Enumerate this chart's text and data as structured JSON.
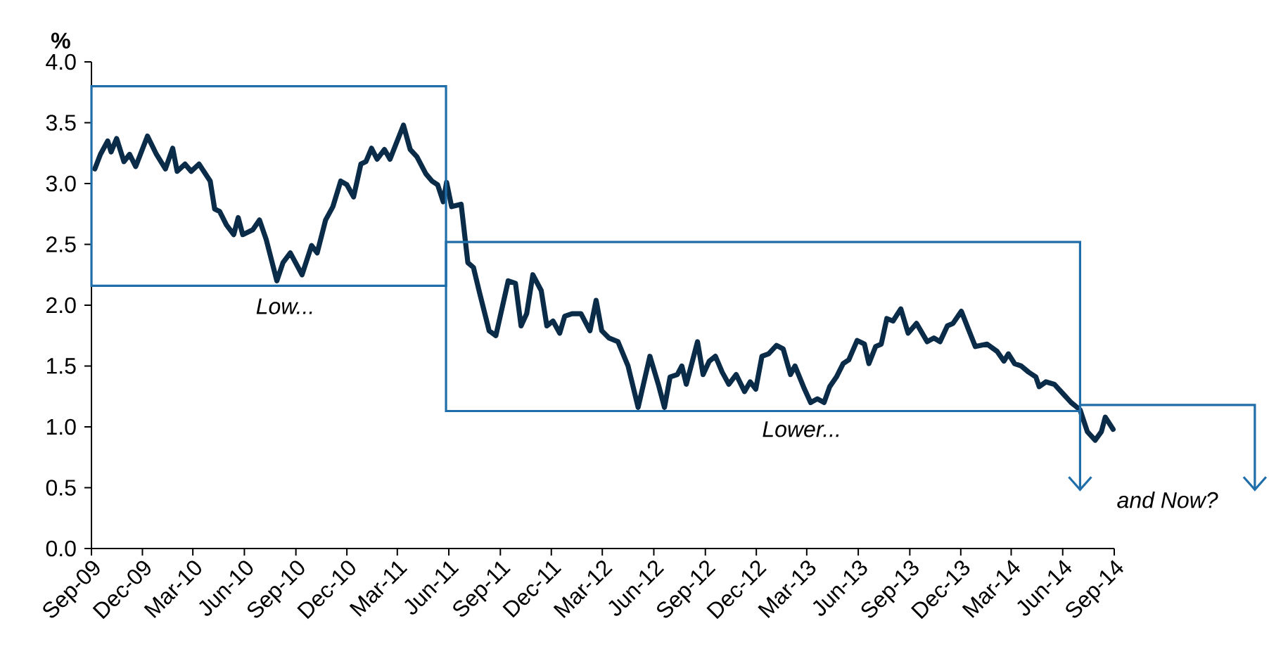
{
  "chart_data": {
    "type": "line",
    "ylabel": "%",
    "x": [
      "2009-09-07",
      "2009-09-17",
      "2009-09-30",
      "2009-10-06",
      "2009-10-16",
      "2009-10-29",
      "2009-11-08",
      "2009-11-19",
      "2009-12-10",
      "2009-12-26",
      "2010-01-11",
      "2010-01-24",
      "2010-02-01",
      "2010-02-15",
      "2010-02-26",
      "2010-03-12",
      "2010-04-01",
      "2010-04-09",
      "2010-04-18",
      "2010-04-30",
      "2010-05-13",
      "2010-05-21",
      "2010-05-29",
      "2010-06-16",
      "2010-06-28",
      "2010-07-10",
      "2010-07-29",
      "2010-08-09",
      "2010-08-22",
      "2010-09-12",
      "2010-09-29",
      "2010-10-09",
      "2010-10-24",
      "2010-11-06",
      "2010-11-20",
      "2010-12-01",
      "2010-12-13",
      "2010-12-26",
      "2011-01-04",
      "2011-01-14",
      "2011-01-24",
      "2011-02-06",
      "2011-02-16",
      "2011-03-12",
      "2011-03-24",
      "2011-04-05",
      "2011-04-21",
      "2011-05-02",
      "2011-05-12",
      "2011-05-22",
      "2011-05-28",
      "2011-06-06",
      "2011-06-23",
      "2011-07-05",
      "2011-07-15",
      "2011-07-26",
      "2011-08-12",
      "2011-08-24",
      "2011-09-15",
      "2011-09-28",
      "2011-10-08",
      "2011-10-18",
      "2011-10-29",
      "2011-11-13",
      "2011-11-23",
      "2011-12-04",
      "2011-12-16",
      "2011-12-25",
      "2012-01-07",
      "2012-01-23",
      "2012-02-08",
      "2012-02-19",
      "2012-02-29",
      "2012-03-13",
      "2012-03-29",
      "2012-04-16",
      "2012-05-04",
      "2012-05-25",
      "2012-06-09",
      "2012-06-20",
      "2012-06-30",
      "2012-07-13",
      "2012-07-21",
      "2012-07-29",
      "2012-08-18",
      "2012-08-28",
      "2012-09-08",
      "2012-09-19",
      "2012-10-01",
      "2012-10-13",
      "2012-10-26",
      "2012-11-10",
      "2012-11-20",
      "2012-11-30",
      "2012-12-11",
      "2012-12-23",
      "2013-01-06",
      "2013-01-18",
      "2013-01-31",
      "2013-02-08",
      "2013-02-25",
      "2013-03-08",
      "2013-03-20",
      "2013-04-01",
      "2013-04-11",
      "2013-04-23",
      "2013-05-05",
      "2013-05-15",
      "2013-05-30",
      "2013-06-12",
      "2013-06-20",
      "2013-07-02",
      "2013-07-12",
      "2013-07-22",
      "2013-08-02",
      "2013-08-16",
      "2013-08-29",
      "2013-09-13",
      "2013-10-02",
      "2013-10-14",
      "2013-10-25",
      "2013-11-07",
      "2013-11-17",
      "2013-12-02",
      "2013-12-14",
      "2013-12-27",
      "2014-01-17",
      "2014-02-04",
      "2014-02-16",
      "2014-02-24",
      "2014-03-07",
      "2014-03-19",
      "2014-04-01",
      "2014-04-14",
      "2014-04-20",
      "2014-05-02",
      "2014-05-17",
      "2014-06-02",
      "2014-06-16",
      "2014-07-02",
      "2014-07-15",
      "2014-07-29",
      "2014-08-09",
      "2014-08-16",
      "2014-08-30"
    ],
    "series": [
      {
        "color": "#0b2c48",
        "line_style": "solid",
        "marker": "none",
        "values": [
          3.12,
          3.24,
          3.35,
          3.26,
          3.37,
          3.18,
          3.24,
          3.14,
          3.39,
          3.24,
          3.12,
          3.29,
          3.1,
          3.16,
          3.1,
          3.16,
          3.02,
          2.79,
          2.77,
          2.66,
          2.58,
          2.72,
          2.58,
          2.62,
          2.7,
          2.54,
          2.2,
          2.35,
          2.43,
          2.25,
          2.49,
          2.43,
          2.7,
          2.81,
          3.02,
          2.99,
          2.89,
          3.16,
          3.18,
          3.29,
          3.2,
          3.28,
          3.2,
          3.48,
          3.28,
          3.22,
          3.08,
          3.02,
          2.99,
          2.85,
          3.01,
          2.81,
          2.83,
          2.35,
          2.31,
          2.1,
          1.79,
          1.75,
          2.2,
          2.18,
          1.83,
          1.93,
          2.25,
          2.12,
          1.83,
          1.87,
          1.77,
          1.91,
          1.93,
          1.93,
          1.79,
          2.04,
          1.79,
          1.73,
          1.7,
          1.5,
          1.16,
          1.58,
          1.35,
          1.16,
          1.41,
          1.43,
          1.5,
          1.35,
          1.7,
          1.43,
          1.54,
          1.58,
          1.45,
          1.35,
          1.43,
          1.29,
          1.37,
          1.31,
          1.58,
          1.6,
          1.67,
          1.64,
          1.43,
          1.5,
          1.31,
          1.2,
          1.23,
          1.2,
          1.33,
          1.41,
          1.52,
          1.55,
          1.71,
          1.68,
          1.52,
          1.66,
          1.68,
          1.89,
          1.87,
          1.97,
          1.77,
          1.85,
          1.7,
          1.73,
          1.7,
          1.83,
          1.85,
          1.95,
          1.81,
          1.66,
          1.68,
          1.62,
          1.54,
          1.6,
          1.52,
          1.5,
          1.45,
          1.41,
          1.33,
          1.37,
          1.35,
          1.27,
          1.2,
          1.14,
          0.96,
          0.89,
          0.96,
          1.08,
          0.98
        ]
      }
    ],
    "xlim": [
      "2009-09",
      "2014-09"
    ],
    "xticks": [
      {
        "value": "2009-09",
        "label": "Sep-09"
      },
      {
        "value": "2009-12",
        "label": "Dec-09"
      },
      {
        "value": "2010-03",
        "label": "Mar-10"
      },
      {
        "value": "2010-06",
        "label": "Jun-10"
      },
      {
        "value": "2010-09",
        "label": "Sep-10"
      },
      {
        "value": "2010-12",
        "label": "Dec-10"
      },
      {
        "value": "2011-03",
        "label": "Mar-11"
      },
      {
        "value": "2011-06",
        "label": "Jun-11"
      },
      {
        "value": "2011-09",
        "label": "Sep-11"
      },
      {
        "value": "2011-12",
        "label": "Dec-11"
      },
      {
        "value": "2012-03",
        "label": "Mar-12"
      },
      {
        "value": "2012-06",
        "label": "Jun-12"
      },
      {
        "value": "2012-09",
        "label": "Sep-12"
      },
      {
        "value": "2012-12",
        "label": "Dec-12"
      },
      {
        "value": "2013-03",
        "label": "Mar-13"
      },
      {
        "value": "2013-06",
        "label": "Jun-13"
      },
      {
        "value": "2013-09",
        "label": "Sep-13"
      },
      {
        "value": "2013-12",
        "label": "Dec-13"
      },
      {
        "value": "2014-03",
        "label": "Mar-14"
      },
      {
        "value": "2014-06",
        "label": "Jun-14"
      },
      {
        "value": "2014-09",
        "label": "Sep-14"
      }
    ],
    "ylim": [
      0,
      4
    ],
    "yticks": [
      {
        "value": 0,
        "label": "0.0"
      },
      {
        "value": 0.5,
        "label": "0.5"
      },
      {
        "value": 1,
        "label": "1.0"
      },
      {
        "value": 1.5,
        "label": "1.5"
      },
      {
        "value": 2,
        "label": "2.0"
      },
      {
        "value": 2.5,
        "label": "2.5"
      },
      {
        "value": 3,
        "label": "3.0"
      },
      {
        "value": 3.5,
        "label": "3.5"
      },
      {
        "value": 4,
        "label": "4.0"
      }
    ],
    "annotations": [
      "Low...",
      "Lower...",
      "and Now?"
    ]
  }
}
